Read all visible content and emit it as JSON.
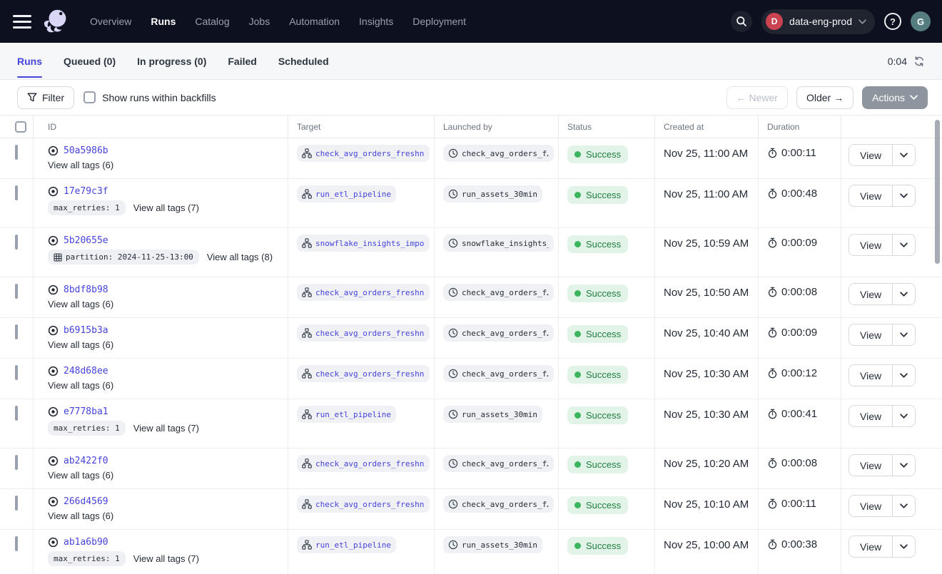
{
  "navbar": {
    "nav_items": [
      {
        "label": "Overview",
        "active": false
      },
      {
        "label": "Runs",
        "active": true
      },
      {
        "label": "Catalog",
        "active": false
      },
      {
        "label": "Jobs",
        "active": false
      },
      {
        "label": "Automation",
        "active": false
      },
      {
        "label": "Insights",
        "active": false
      },
      {
        "label": "Deployment",
        "active": false
      }
    ],
    "deployment": {
      "initial": "D",
      "name": "data-eng-prod"
    },
    "help_glyph": "?",
    "avatar_initial": "G"
  },
  "tabs": {
    "items": [
      {
        "label": "Runs",
        "active": true
      },
      {
        "label": "Queued (0)",
        "active": false
      },
      {
        "label": "In progress (0)",
        "active": false
      },
      {
        "label": "Failed",
        "active": false
      },
      {
        "label": "Scheduled",
        "active": false
      }
    ],
    "refresh_timer": "0:04"
  },
  "toolbar": {
    "filter_label": "Filter",
    "backfills_label": "Show runs within backfills",
    "newer_label": "← Newer",
    "older_label": "Older →",
    "actions_label": "Actions"
  },
  "table": {
    "columns": [
      "ID",
      "Target",
      "Launched by",
      "Status",
      "Created at",
      "Duration"
    ],
    "view_button_label": "View",
    "rows": [
      {
        "id": "50a5986b",
        "tag_pills": [],
        "view_all": "View all tags (6)",
        "target": "check_avg_orders_freshne",
        "launched_by": "check_avg_orders_f…",
        "status": "Success",
        "created_at": "Nov 25, 11:00 AM",
        "duration": "0:00:11"
      },
      {
        "id": "17e79c3f",
        "tag_pills": [
          {
            "icon": null,
            "label": "max_retries: 1"
          }
        ],
        "view_all": "View all tags (7)",
        "target": "run_etl_pipeline",
        "launched_by": "run_assets_30min",
        "status": "Success",
        "created_at": "Nov 25, 11:00 AM",
        "duration": "0:00:48"
      },
      {
        "id": "5b20655e",
        "tag_pills": [
          {
            "icon": "grid",
            "label": "partition: 2024-11-25-13:00"
          }
        ],
        "view_all": "View all tags (8)",
        "target": "snowflake_insights_import",
        "launched_by": "snowflake_insights_…",
        "status": "Success",
        "created_at": "Nov 25, 10:59 AM",
        "duration": "0:00:09"
      },
      {
        "id": "8bdf8b98",
        "tag_pills": [],
        "view_all": "View all tags (6)",
        "target": "check_avg_orders_freshne",
        "launched_by": "check_avg_orders_f…",
        "status": "Success",
        "created_at": "Nov 25, 10:50 AM",
        "duration": "0:00:08"
      },
      {
        "id": "b6915b3a",
        "tag_pills": [],
        "view_all": "View all tags (6)",
        "target": "check_avg_orders_freshne",
        "launched_by": "check_avg_orders_f…",
        "status": "Success",
        "created_at": "Nov 25, 10:40 AM",
        "duration": "0:00:09"
      },
      {
        "id": "248d68ee",
        "tag_pills": [],
        "view_all": "View all tags (6)",
        "target": "check_avg_orders_freshne",
        "launched_by": "check_avg_orders_f…",
        "status": "Success",
        "created_at": "Nov 25, 10:30 AM",
        "duration": "0:00:12"
      },
      {
        "id": "e7778ba1",
        "tag_pills": [
          {
            "icon": null,
            "label": "max_retries: 1"
          }
        ],
        "view_all": "View all tags (7)",
        "target": "run_etl_pipeline",
        "launched_by": "run_assets_30min",
        "status": "Success",
        "created_at": "Nov 25, 10:30 AM",
        "duration": "0:00:41"
      },
      {
        "id": "ab2422f0",
        "tag_pills": [],
        "view_all": "View all tags (6)",
        "target": "check_avg_orders_freshne",
        "launched_by": "check_avg_orders_f…",
        "status": "Success",
        "created_at": "Nov 25, 10:20 AM",
        "duration": "0:00:08"
      },
      {
        "id": "266d4569",
        "tag_pills": [],
        "view_all": "View all tags (6)",
        "target": "check_avg_orders_freshne",
        "launched_by": "check_avg_orders_f…",
        "status": "Success",
        "created_at": "Nov 25, 10:10 AM",
        "duration": "0:00:11"
      },
      {
        "id": "ab1a6b90",
        "tag_pills": [
          {
            "icon": null,
            "label": "max_retries: 1"
          }
        ],
        "view_all": "View all tags (7)",
        "target": "run_etl_pipeline",
        "launched_by": "run_assets_30min",
        "status": "Success",
        "created_at": "Nov 25, 10:00 AM",
        "duration": "0:00:38"
      }
    ]
  },
  "colors": {
    "navbar_bg": "#0d101f",
    "accent_indigo": "#4643dc",
    "success_green": "#3cb55e",
    "success_bg": "#e2f3e7",
    "deployment_badge_red": "#cb4351",
    "avatar_teal": "#557d7f"
  }
}
